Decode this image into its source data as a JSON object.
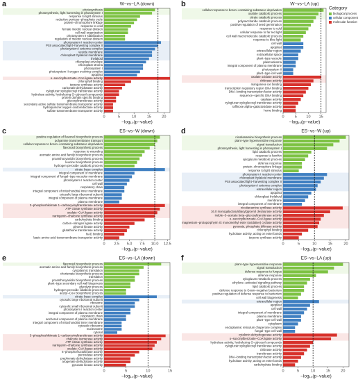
{
  "chart_data": [
    {
      "type": "bar",
      "orientation": "horizontal",
      "letter": "a",
      "title": "W−vs−LA (down)",
      "xlabel": "−log₁₀(p−value)",
      "xlim": [
        0,
        22
      ],
      "xticks": [
        0,
        5,
        10,
        15,
        20
      ],
      "threshold": 18,
      "groups": [
        {
          "highlight": 2,
          "categories": [
            "photosynthesis",
            "photosynthesis, light harvesting in photosystem I",
            "response to light stimulus",
            "reductive pentose−phosphate cycle",
            "protein−chromophore linkage",
            "response to cold",
            "female meiotic nuclear division",
            "cell wall organization",
            "photosystem II stabilization",
            "regulation of meiotic nuclear division"
          ],
          "values": [
            17,
            16,
            12,
            11,
            10,
            9,
            8,
            8,
            7,
            7
          ]
        },
        {
          "highlight": 6,
          "categories": [
            "photosystem I reaction center",
            "PSII associated light−harvesting complex II",
            "photosystem I antenna complex",
            "vesicle membrane",
            "chloroplast thylakoid membrane",
            "thylakoid",
            "chloroplast envelope",
            "chloroplast stroma",
            "photosystem I",
            "photosystem II oxygen evolving complex",
            "apoplast"
          ],
          "values": [
            19,
            18,
            17,
            16,
            16,
            15,
            14,
            13,
            13,
            12,
            11
          ]
        },
        {
          "highlight": 1,
          "categories": [
            "o−succinylbenzoate−CoA ligase activity",
            "chlorophyll binding",
            "terpene synthase activity",
            "carbonate dehydratase activity",
            "xyloglucan:xyloglucosyl transferase activity",
            "hydrolase activity, hydrolyzing O−glycosyl compounds",
            "protein domain specific binding",
            "glucosyltransferase activity",
            "secondary active sulfate transmembrane transporter activity",
            "hydroquinone:oxygen oxidoreductase activity",
            "sulfate transmembrane transporter activity"
          ],
          "values": [
            22,
            9,
            7,
            6,
            5,
            5,
            4,
            4,
            3,
            3,
            3
          ]
        }
      ]
    },
    {
      "type": "bar",
      "orientation": "horizontal",
      "letter": "b",
      "title": "W−vs−LA (up)",
      "xlabel": "−log₁₀(p−value)",
      "xlim": [
        0,
        17
      ],
      "xticks": [
        0,
        5,
        10,
        15
      ],
      "threshold": 15,
      "legend": {
        "title": "Category",
        "items": [
          {
            "name": "biological process",
            "color": "#7dc243"
          },
          {
            "name": "cellular component",
            "color": "#3f7fc1"
          },
          {
            "name": "molecular function",
            "color": "#d7312b"
          }
        ]
      },
      "groups": [
        {
          "highlight": 3,
          "categories": [
            "cellular response to boron−containing substance deprivation",
            "oxalate catabolic process",
            "citrate catabolic process",
            "polysaccharide catabolic process",
            "positive regulation of seed germination",
            "response to cold",
            "cellular response to far red light",
            "cell wall macromolecule catabolic process",
            "response to blue light"
          ],
          "values": [
            16,
            14,
            13,
            12,
            11,
            10,
            9,
            8,
            7
          ]
        },
        {
          "highlight": 0,
          "categories": [
            "cell wall",
            "apoplast",
            "extracellular region",
            "extracellular space",
            "plant−type vacuole",
            "plasmodesma",
            "integral component of plasma membrane",
            "photosystem II",
            "plant−type cell wall"
          ],
          "values": [
            8,
            8,
            7,
            6,
            6,
            5,
            5,
            4,
            4
          ]
        },
        {
          "highlight": 2,
          "categories": [
            "oxalate oxidase activity",
            "chitinase activity",
            "manganese ion binding",
            "transcription regulatory region DNA binding",
            "DNA−binding transcription factor activity",
            "sequence−specific DNA binding",
            "catalase activity",
            "xyloglucan:xyloglucosyl transferase activity",
            "raffinose alpha−galactosidase activity",
            "heme binding"
          ],
          "values": [
            15,
            12,
            11,
            10,
            9,
            8,
            7,
            6,
            5,
            5
          ]
        }
      ]
    },
    {
      "type": "bar",
      "orientation": "horizontal",
      "letter": "c",
      "title": "ES−vs−W (down)",
      "xlabel": "−log₁₀(p−value)",
      "xlim": [
        0,
        13
      ],
      "xticks": [
        0,
        2.5,
        {
          "value": 5,
          "label": "5.0"
        },
        7.5,
        {
          "value": 10,
          "label": "10.0"
        },
        12.5
      ],
      "threshold": 10,
      "groups": [
        {
          "highlight": 4,
          "categories": [
            "positive regulation of flavonol biosynthetic process",
            "polyamine transmembrane transport",
            "cellular response to boron−containing substance deprivation",
            "flavonoid biosynthetic process",
            "response to wounding",
            "aromatic amino acid family biosynthetic process",
            "proanthocyanidin biosynthetic process",
            "leucine biosynthetic process",
            "hydrogen peroxide catabolic process"
          ],
          "values": [
            11,
            10.5,
            10,
            9,
            8,
            7.5,
            7,
            6.5,
            6
          ]
        },
        {
          "highlight": 1,
          "categories": [
            "citrate lyase complex",
            "integral component of membrane",
            "integral component of fungal−type vacuolar membrane",
            "photosystem I reaction center",
            "cell wall",
            "respiratory chain",
            "integral component of mitochondrial inner membrane",
            "cytosolic large ribosomal subunit",
            "integral component of plasma membrane",
            "plasma membrane"
          ],
          "values": [
            12,
            6,
            5.5,
            5,
            4.5,
            4,
            4,
            3.5,
            3.5,
            3
          ]
        },
        {
          "highlight": 4,
          "categories": [
            "3−phosphoshikimate 1−carboxyvinyltransferase activity",
            "ATP citrate synthase activity",
            "oxalate−CoA ligase activity",
            "naringenin−chalcone synthase activity",
            "carbohydrate binding",
            "carbon−nitrogen ligase activity",
            "glycerol kinase activity",
            "glutathione transferase activity",
            "NAD binding",
            "basic amino acid transmembrane transporter activity"
          ],
          "values": [
            12,
            11,
            10.5,
            10,
            8,
            6,
            5,
            4.5,
            4,
            3
          ]
        }
      ]
    },
    {
      "type": "bar",
      "orientation": "horizontal",
      "letter": "d",
      "title": "ES−vs−W (up)",
      "xlabel": "−log₁₀(p−value)",
      "xlim": [
        0,
        21
      ],
      "xticks": [
        0,
        5,
        10,
        15,
        20
      ],
      "threshold": 10,
      "groups": [
        {
          "highlight": 4,
          "categories": [
            "nicotianamine biosynthetic process",
            "plant−type hypersensitive response",
            "signal transduction",
            "photosynthesis, light harvesting in photosystem I",
            "lipid catabolic process",
            "response to karrikin",
            "xyloglucan metabolic process",
            "defense response",
            "protein−chromophore linkage",
            "response to light stimulus"
          ],
          "values": [
            20,
            18,
            16,
            14,
            9,
            8,
            7,
            6,
            6,
            5
          ]
        },
        {
          "highlight": 5,
          "categories": [
            "photosystem I reaction center",
            "chloroplast thylakoid membrane",
            "PSII associated light−harvesting complex II",
            "photosystem I antenna complex",
            "extracellular region",
            "apoplast",
            "chloroplast thylakoid",
            "membrane",
            "integral component of membrane"
          ],
          "values": [
            14,
            13,
            12,
            11,
            10.5,
            9,
            8,
            7,
            6
          ]
        },
        {
          "highlight": 6,
          "categories": [
            "nicotianamine synthase activity",
            "16.0 monogalactosyldiacylglycerol desaturase activity",
            "indole−3−acetate beta−glucosyltransferase activity",
            "o−succinylbenzoate−CoA ligase activity",
            "magnesium−protoporphyrin IX monomethyl ester (oxidative) cyclase activity",
            "pyruvate, phosphate dikinase activity",
            "chlorophyll binding",
            "hydrolase activity, acting on ester bonds",
            "terpene synthase activity"
          ],
          "values": [
            19,
            15,
            13,
            12,
            11.5,
            11,
            8,
            6,
            5
          ]
        }
      ]
    },
    {
      "type": "bar",
      "orientation": "horizontal",
      "letter": "e",
      "title": "ES−vs−LA (down)",
      "xlabel": "−log₁₀(p−value)",
      "xlim": [
        0,
        15
      ],
      "xticks": [
        0,
        5,
        10,
        15
      ],
      "threshold": 10,
      "groups": [
        {
          "highlight": 1,
          "categories": [
            "flavonoid biosynthetic process",
            "aromatic amino acid family biosynthetic process",
            "cytoplasmic translation",
            "chorismate biosynthetic process",
            "translation",
            "proanthocyanidin biosynthetic process",
            "plant−type secondary cell wall biogenesis",
            "glycolytic process",
            "hydrogen peroxide catabolic process",
            "acetyl−CoA biosynthetic process"
          ],
          "values": [
            13,
            9,
            8,
            8,
            7,
            7,
            6,
            6,
            5,
            5
          ]
        },
        {
          "highlight": 1,
          "categories": [
            "citrate lyase complex",
            "cytosolic large ribosomal subunit",
            "ribosome",
            "cytosolic small ribosomal subunit",
            "photosystem I reaction center",
            "integral component of plasma membrane",
            "respiratory chain",
            "anchored component of plasma membrane",
            "integral component of mitochondrial inner membrane",
            "cytosolic ribosome",
            "nucleosome",
            "cytosol"
          ],
          "values": [
            12,
            8,
            7,
            7,
            6,
            6,
            5,
            5,
            4,
            4,
            4,
            3
          ]
        },
        {
          "highlight": 5,
          "categories": [
            "3−phosphoshikimate 1−carboxyvinyltransferase activity",
            "chalcone isomerase activity",
            "ATP citrate synthase activity",
            "naringenin−chalcone synthase activity",
            "oxalate−CoA ligase activity",
            "6−phosphofructokinase activity",
            "peroxidase activity",
            "prephenate dehydratase activity",
            "arogenate dehydratase activity",
            "pyruvate kinase activity"
          ],
          "values": [
            14,
            13,
            12,
            11.5,
            11,
            8,
            7,
            6,
            6,
            5
          ]
        }
      ]
    },
    {
      "type": "bar",
      "orientation": "horizontal",
      "letter": "f",
      "title": "ES−vs−LA (up)",
      "xlabel": "−log₁₀(p−value)",
      "xlim": [
        0,
        22
      ],
      "xticks": [
        0,
        5,
        10,
        15,
        20
      ],
      "threshold": 10,
      "groups": [
        {
          "highlight": 3,
          "categories": [
            "plant−type hypersensitive response",
            "signal transduction",
            "defense response to fungus",
            "defense response",
            "xyloglucan metabolic process",
            "ethylene−activated signaling pathway",
            "lipid catabolic process",
            "defense response to Gram−negative bacterium",
            "positive regulation of defense response to bacterium",
            "cell wall biogenesis"
          ],
          "values": [
            20,
            17,
            15,
            11,
            9,
            8,
            7,
            7,
            6,
            5
          ]
        },
        {
          "highlight": 1,
          "categories": [
            "extracellular region",
            "apoplast",
            "cell wall",
            "integral component of membrane",
            "plasma membrane",
            "plant−type cell wall",
            "cytoplasm",
            "endoplasmic reticulum chaperone complex",
            "fungal−type cell wall"
          ],
          "values": [
            12,
            9,
            8,
            7,
            6,
            6,
            5,
            4,
            4
          ]
        },
        {
          "highlight": 2,
          "categories": [
            "cytokinin dehydrogenase activity",
            "o−succinylbenzoate−CoA ligase activity",
            "hydrolase activity, hydrolyzing O−glycosyl compounds",
            "xyloglucan:xyloglucosyl transferase activity",
            "chitinase activity",
            "transferase activity",
            "DNA−binding transcription factor activity",
            "hydrolase activity, acting on ester bonds",
            "carbohydrate binding"
          ],
          "values": [
            18,
            16,
            10,
            9,
            8,
            7,
            6,
            5,
            4
          ]
        }
      ]
    }
  ],
  "highlight_color": "#e03c31"
}
